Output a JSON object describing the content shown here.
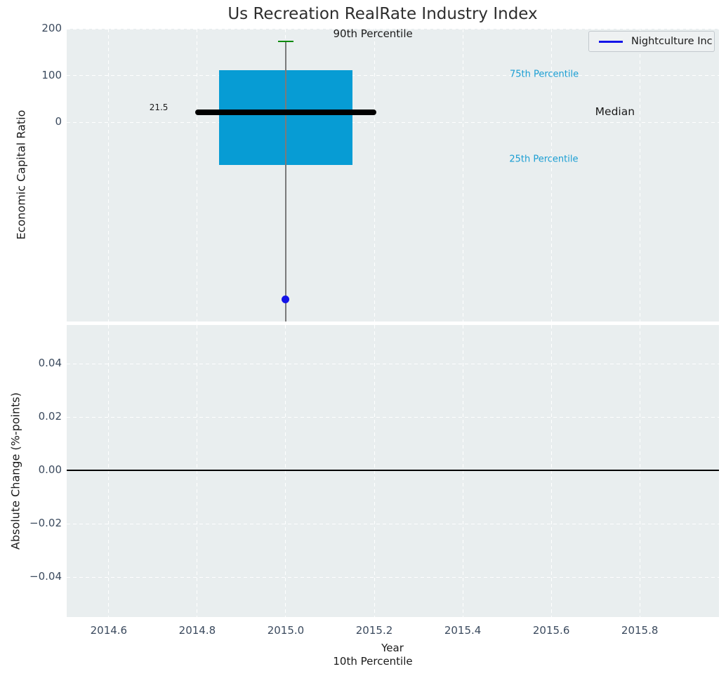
{
  "title": "Us Recreation RealRate Industry Index",
  "legend": {
    "label": "Nightculture Inc",
    "line_color": "#1313e8",
    "position": "upper right"
  },
  "xlabel_secondary": "10th Percentile",
  "colors": {
    "axes_background": "#e9eeef",
    "grid": "#ffffff",
    "tick_label": "#3b4a5e",
    "box_fill": "#079cd4",
    "percentile_text": "#1b9ed3",
    "whisker_cap_green": "#0c8a0c",
    "company_blue": "#1313e8",
    "median_line": "#000000"
  },
  "chart_data": [
    {
      "type": "boxplot",
      "panel": "top",
      "ylabel": "Economic Capital Ratio",
      "xlim": [
        2014.505,
        2015.979
      ],
      "ylim": [
        -427,
        200
      ],
      "grid": {
        "color": "#ffffff",
        "style": "dashed",
        "vertical": true,
        "horizontal": true
      },
      "yticks": [
        {
          "v": 200,
          "label": "200"
        },
        {
          "v": 100,
          "label": "100"
        },
        {
          "v": 0,
          "label": "0"
        }
      ],
      "x": 2015.0,
      "box_width": 0.3,
      "median_line_span": 0.41,
      "cap_span": 0.034,
      "stats": {
        "p90": 173,
        "p75": 111,
        "median": 21.5,
        "p25": -91,
        "p10_below_visible_range": true
      },
      "series": [
        {
          "name": "Nightculture Inc",
          "color": "#1313e8",
          "marker": "circle",
          "points": [
            {
              "x": 2015.0,
              "y": -379
            }
          ]
        }
      ],
      "annotations": [
        {
          "id": "p90-label",
          "text": "90th Percentile",
          "x": 2015.197,
          "y": 189.5,
          "color": "#1a1a1a",
          "size": 15
        },
        {
          "id": "p75-label",
          "text": "75th Percentile",
          "x": 2015.584,
          "y": 102.3,
          "color": "#1b9ed3",
          "size": 13
        },
        {
          "id": "median-label",
          "text": "Median",
          "x": 2015.744,
          "y": 22.6,
          "color": "#1a1a1a",
          "size": 15.5
        },
        {
          "id": "p25-label",
          "text": "25th Percentile",
          "x": 2015.583,
          "y": -79.7,
          "color": "#1b9ed3",
          "size": 13
        },
        {
          "id": "median-value",
          "text": "21.5",
          "x": 2014.713,
          "y": 31.6,
          "color": "#1a1a1a",
          "size": 12
        }
      ]
    },
    {
      "type": "line",
      "panel": "bottom",
      "ylabel": "Absolute Change (%-points)",
      "xlabel": "Year",
      "xlim": [
        2014.505,
        2015.979
      ],
      "ylim": [
        -0.055,
        0.0545
      ],
      "zero_line": 0.0,
      "grid": {
        "color": "#ffffff",
        "style": "dashed",
        "vertical": true,
        "horizontal": true
      },
      "yticks": [
        {
          "v": 0.04,
          "label": "0.04"
        },
        {
          "v": 0.02,
          "label": "0.02"
        },
        {
          "v": 0.0,
          "label": "0.00"
        },
        {
          "v": -0.02,
          "label": "−0.02"
        },
        {
          "v": -0.04,
          "label": "−0.04"
        }
      ],
      "xticks": [
        {
          "v": 2014.6,
          "label": "2014.6"
        },
        {
          "v": 2014.8,
          "label": "2014.8"
        },
        {
          "v": 2015.0,
          "label": "2015.0"
        },
        {
          "v": 2015.2,
          "label": "2015.2"
        },
        {
          "v": 2015.4,
          "label": "2015.4"
        },
        {
          "v": 2015.6,
          "label": "2015.6"
        },
        {
          "v": 2015.8,
          "label": "2015.8"
        }
      ],
      "series": []
    }
  ]
}
